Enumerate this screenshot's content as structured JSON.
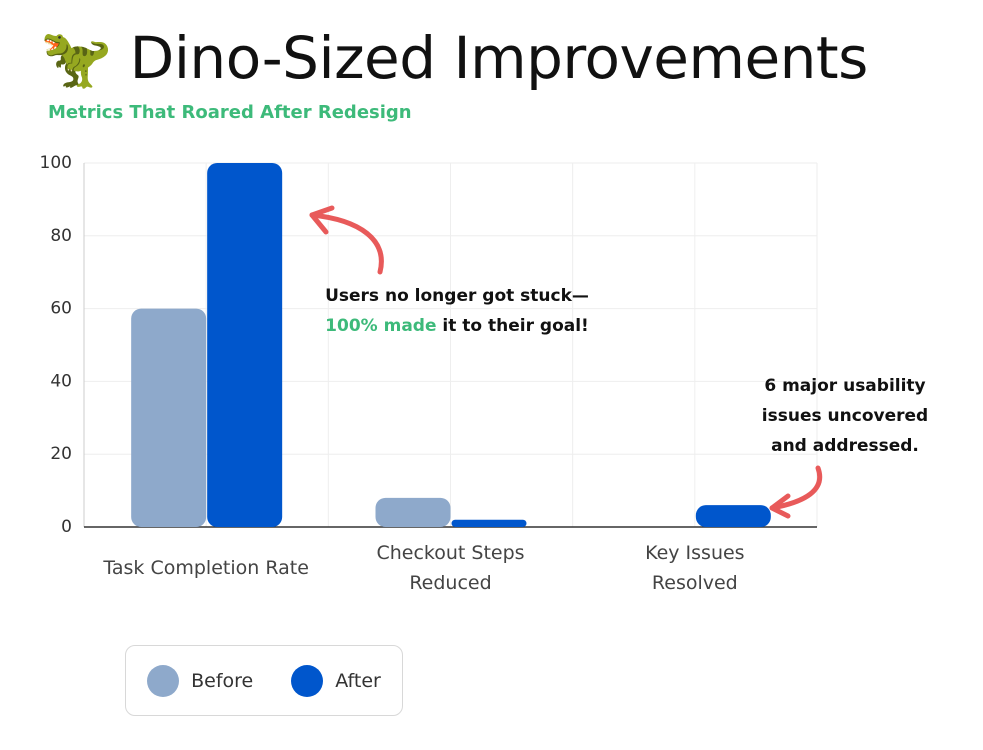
{
  "chart_data": {
    "type": "bar",
    "title": "🦖 Dino-Sized Improvements",
    "subtitle": "Metrics That Roared After Redesign",
    "categories": [
      "Task Completion Rate",
      "Checkout Steps Reduced",
      "Key Issues Resolved"
    ],
    "series": [
      {
        "name": "Before",
        "color": "#8ea9cb",
        "values": [
          60,
          8,
          null
        ]
      },
      {
        "name": "After",
        "color": "#0056cc",
        "values": [
          100,
          2,
          6
        ]
      }
    ],
    "ylim": [
      0,
      100
    ],
    "yticks": [
      0,
      20,
      40,
      60,
      80,
      100
    ],
    "grid": true,
    "annotations": [
      {
        "lines": [
          [
            "Users no longer got stuck—"
          ],
          [
            "100% made",
            " it to their goal!"
          ]
        ]
      },
      {
        "lines": [
          [
            "6 major usability"
          ],
          [
            "issues uncovered"
          ],
          [
            "and addressed."
          ]
        ]
      }
    ]
  }
}
